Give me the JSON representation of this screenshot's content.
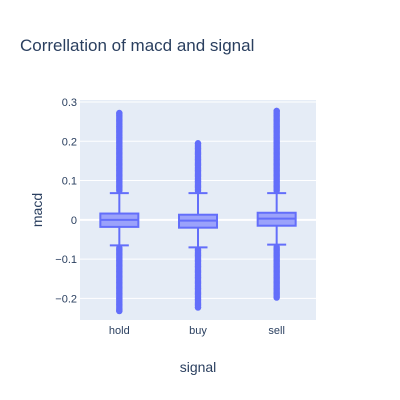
{
  "chart_data": {
    "type": "box",
    "title": "Correllation of macd and signal",
    "xlabel": "signal",
    "ylabel": "macd",
    "categories": [
      "hold",
      "buy",
      "sell"
    ],
    "ylim": [
      -0.255,
      0.305
    ],
    "yticks": [
      0.3,
      0.2,
      0.1,
      0,
      -0.1,
      -0.2
    ],
    "ytick_labels": [
      "0.3",
      "0.2",
      "0.1",
      "0",
      "−0.1",
      "−0.2"
    ],
    "grid": true,
    "legend": "none",
    "boxes": [
      {
        "name": "hold",
        "q1": -0.018,
        "median": 0.0,
        "q3": 0.016,
        "lower_fence": -0.065,
        "upper_fence": 0.068,
        "outlier_min": -0.232,
        "outlier_max": 0.272
      },
      {
        "name": "buy",
        "q1": -0.02,
        "median": -0.002,
        "q3": 0.013,
        "lower_fence": -0.07,
        "upper_fence": 0.068,
        "outlier_min": -0.223,
        "outlier_max": 0.195
      },
      {
        "name": "sell",
        "q1": -0.015,
        "median": 0.003,
        "q3": 0.018,
        "lower_fence": -0.063,
        "upper_fence": 0.068,
        "outlier_min": -0.198,
        "outlier_max": 0.277
      }
    ],
    "colors": {
      "box": "#636efa",
      "fill": "#9ba2fb",
      "plot_bg": "#e5ecf6",
      "grid": "#ffffff",
      "text": "#2a3f5f"
    }
  }
}
